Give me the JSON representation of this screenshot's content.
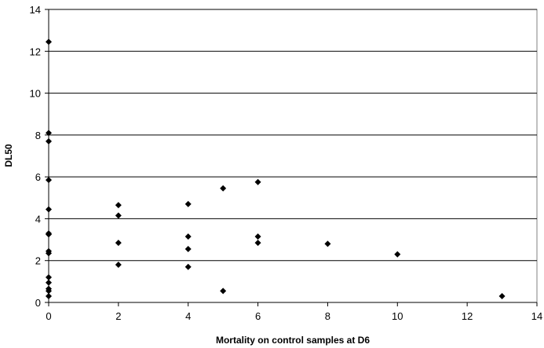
{
  "chart_data": {
    "type": "scatter",
    "title": "",
    "xlabel": "Mortality on control samples at D6",
    "ylabel": "DL50",
    "xlim": [
      0,
      14
    ],
    "ylim": [
      0,
      14
    ],
    "xticks": [
      0,
      2,
      4,
      6,
      8,
      10,
      12,
      14
    ],
    "yticks": [
      0,
      2,
      4,
      6,
      8,
      10,
      12,
      14
    ],
    "grid": "horizontal",
    "marker": "diamond",
    "marker_color": "#000000",
    "series": [
      {
        "points": [
          {
            "x": 0,
            "y": 12.45
          },
          {
            "x": 0,
            "y": 8.1
          },
          {
            "x": 0,
            "y": 7.7
          },
          {
            "x": 0,
            "y": 5.85
          },
          {
            "x": 0,
            "y": 4.45
          },
          {
            "x": 0,
            "y": 3.3
          },
          {
            "x": 0,
            "y": 3.25
          },
          {
            "x": 0,
            "y": 2.45
          },
          {
            "x": 0,
            "y": 2.35
          },
          {
            "x": 0,
            "y": 1.2
          },
          {
            "x": 0,
            "y": 0.95
          },
          {
            "x": 0,
            "y": 0.65
          },
          {
            "x": 0,
            "y": 0.55
          },
          {
            "x": 0,
            "y": 0.3
          },
          {
            "x": 2,
            "y": 4.65
          },
          {
            "x": 2,
            "y": 4.15
          },
          {
            "x": 2,
            "y": 2.85
          },
          {
            "x": 2,
            "y": 1.8
          },
          {
            "x": 4,
            "y": 4.7
          },
          {
            "x": 4,
            "y": 3.15
          },
          {
            "x": 4,
            "y": 2.55
          },
          {
            "x": 4,
            "y": 1.7
          },
          {
            "x": 5,
            "y": 5.45
          },
          {
            "x": 5,
            "y": 0.55
          },
          {
            "x": 6,
            "y": 5.75
          },
          {
            "x": 6,
            "y": 3.15
          },
          {
            "x": 6,
            "y": 2.85
          },
          {
            "x": 8,
            "y": 2.8
          },
          {
            "x": 10,
            "y": 2.3
          },
          {
            "x": 13,
            "y": 0.3
          }
        ]
      }
    ]
  }
}
